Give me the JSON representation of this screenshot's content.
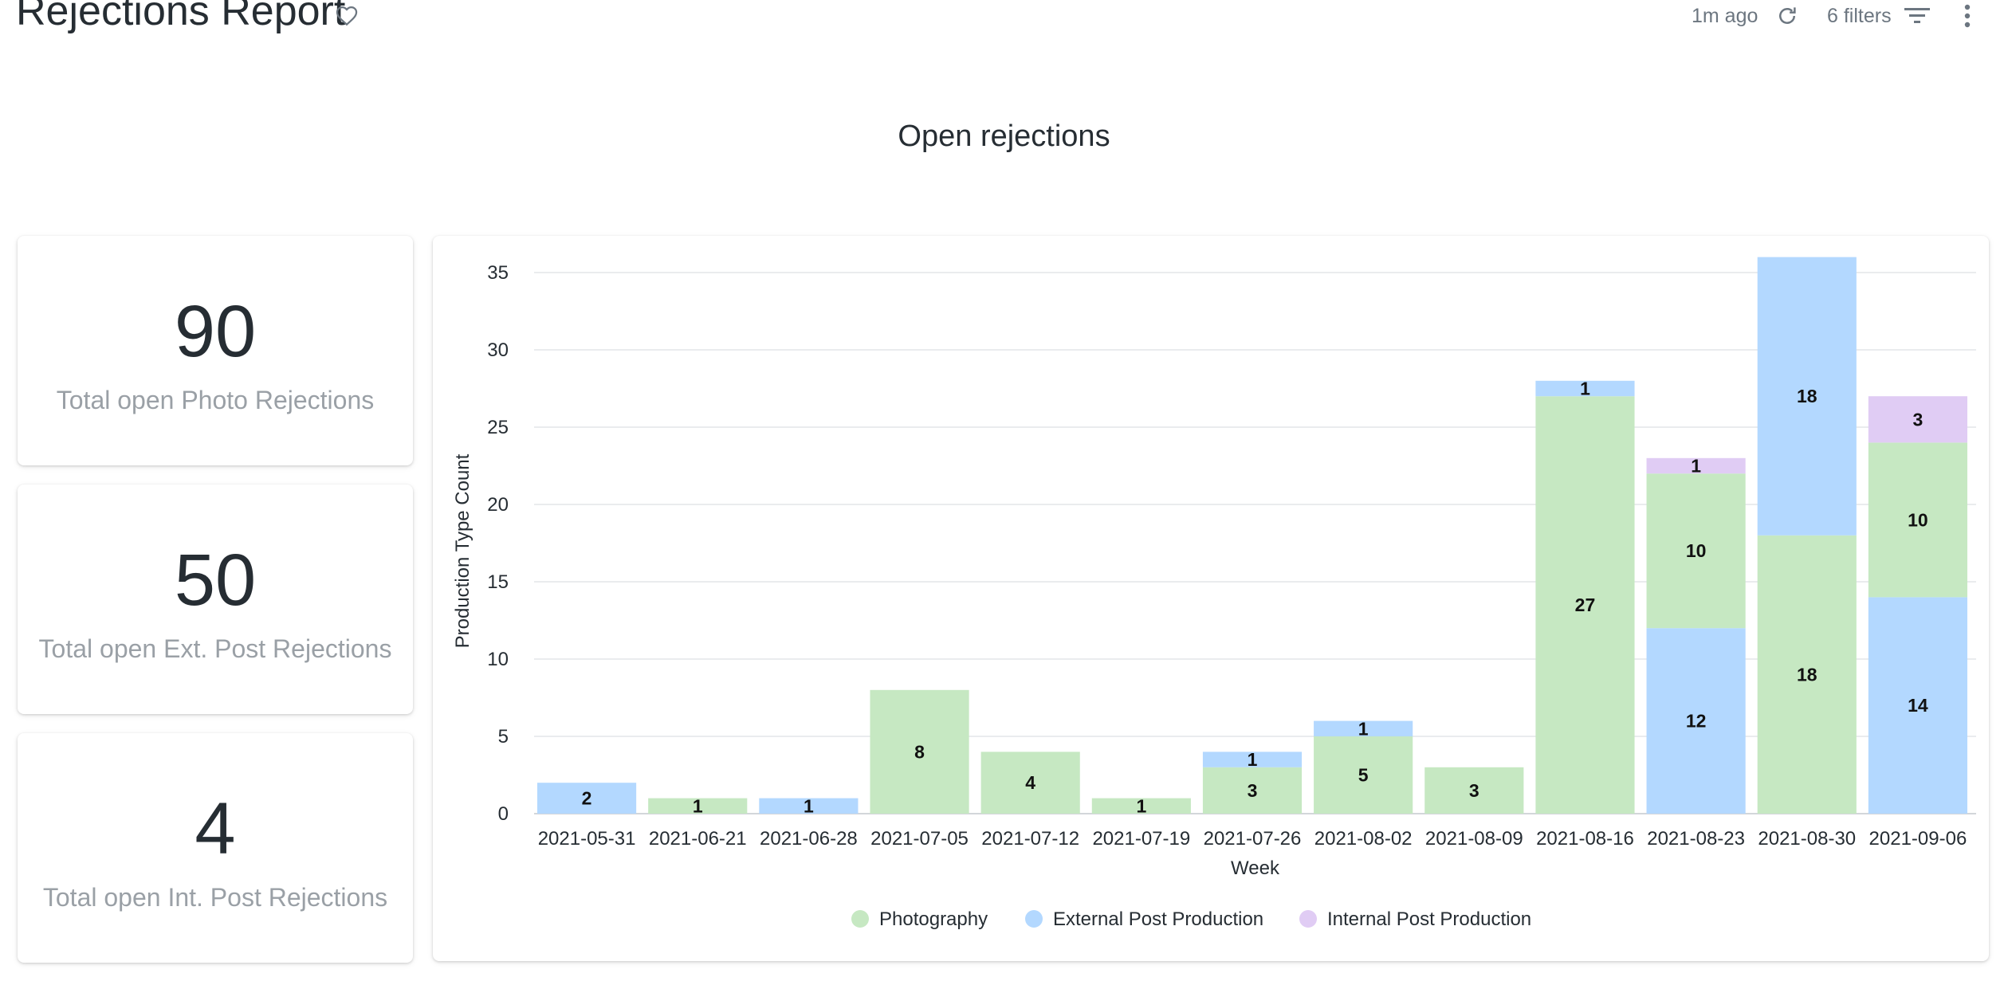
{
  "header": {
    "title": "Rejections Report",
    "updated": "1m ago",
    "filters": "6 filters"
  },
  "icons": {
    "favorite": "heart-outline-icon",
    "refresh": "refresh-icon",
    "filter": "filter-lines-icon",
    "more": "more-vert-icon"
  },
  "section_title": "Open rejections",
  "cards": [
    {
      "value": "90",
      "label": "Total open Photo Rejections"
    },
    {
      "value": "50",
      "label": "Total open Ext. Post Rejections"
    },
    {
      "value": "4",
      "label": "Total open Int. Post Rejections"
    }
  ],
  "chart_data": {
    "type": "bar",
    "stacked": true,
    "categories": [
      "2021-05-31",
      "2021-06-21",
      "2021-06-28",
      "2021-07-05",
      "2021-07-12",
      "2021-07-19",
      "2021-07-26",
      "2021-08-02",
      "2021-08-09",
      "2021-08-16",
      "2021-08-23",
      "2021-08-30",
      "2021-09-06"
    ],
    "series": [
      {
        "name": "Photography",
        "color": "#c6e8c2",
        "values": [
          0,
          1,
          0,
          8,
          4,
          1,
          3,
          5,
          3,
          27,
          10,
          18,
          10
        ]
      },
      {
        "name": "External Post Production",
        "color": "#b3d8ff",
        "values": [
          2,
          0,
          1,
          0,
          0,
          0,
          1,
          1,
          0,
          1,
          12,
          18,
          14
        ]
      },
      {
        "name": "Internal Post Production",
        "color": "#e0ccf4",
        "values": [
          0,
          0,
          0,
          0,
          0,
          0,
          0,
          0,
          0,
          0,
          1,
          0,
          3
        ]
      }
    ],
    "stack_order": [
      [
        "External Post Production",
        "Internal Post Production"
      ],
      [
        "Photography"
      ],
      [
        "External Post Production"
      ],
      [
        "Photography"
      ],
      [
        "Photography"
      ],
      [
        "Photography"
      ],
      [
        "Photography",
        "External Post Production"
      ],
      [
        "Photography",
        "External Post Production"
      ],
      [
        "Photography"
      ],
      [
        "Photography",
        "External Post Production"
      ],
      [
        "External Post Production",
        "Photography",
        "Internal Post Production"
      ],
      [
        "Photography",
        "External Post Production"
      ],
      [
        "External Post Production",
        "Photography",
        "Internal Post Production"
      ]
    ],
    "xlabel": "Week",
    "ylabel": "Production Type Count",
    "ylim": [
      0,
      35
    ],
    "yticks": [
      "0",
      "5",
      "10",
      "15",
      "20",
      "25",
      "30",
      "35"
    ],
    "grid": true,
    "legend": "bottom-center"
  }
}
